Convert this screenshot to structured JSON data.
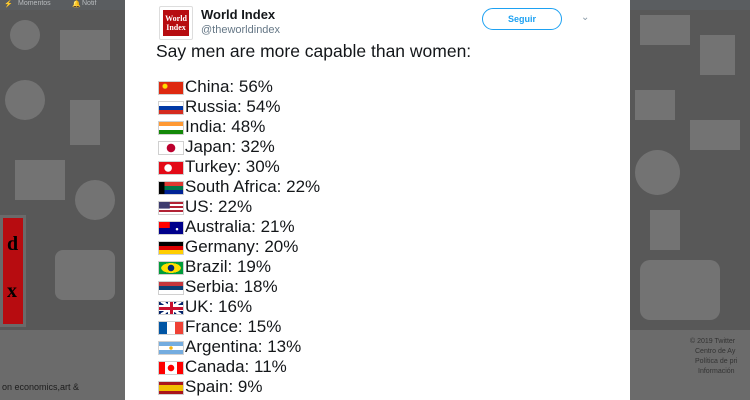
{
  "background": {
    "nav_items": [
      "Momentos",
      "Notif"
    ],
    "left_snippet": "on economics,art &",
    "logo_letters": [
      "d",
      "x"
    ],
    "footer_lines": [
      "© 2019 Twitter",
      "Centro de Ay",
      "Política de pri",
      "Información"
    ]
  },
  "tweet": {
    "author": {
      "name": "World Index",
      "handle": "@theworldindex",
      "avatar_text": "World Index"
    },
    "follow_label": "Seguir",
    "text": "Say men are more capable than women:",
    "rows": [
      {
        "label": "China: 56%",
        "flag": "china-flag-icon",
        "colors": [
          "#de2910",
          "#ffde00"
        ]
      },
      {
        "label": "Russia: 54%",
        "flag": "russia-flag-icon",
        "colors": [
          "#ffffff",
          "#0039a6",
          "#d52b1e"
        ]
      },
      {
        "label": "India: 48%",
        "flag": "india-flag-icon",
        "colors": [
          "#ff9933",
          "#ffffff",
          "#138808"
        ]
      },
      {
        "label": "Japan: 32%",
        "flag": "japan-flag-icon",
        "colors": [
          "#ffffff",
          "#bc002d"
        ]
      },
      {
        "label": "Turkey: 30%",
        "flag": "turkey-flag-icon",
        "colors": [
          "#e30a17",
          "#ffffff"
        ]
      },
      {
        "label": "South Africa: 22%",
        "flag": "south-africa-flag-icon",
        "colors": [
          "#007749",
          "#000000",
          "#ffb612",
          "#de3831",
          "#002395"
        ]
      },
      {
        "label": "US: 22%",
        "flag": "us-flag-icon",
        "colors": [
          "#b22234",
          "#ffffff",
          "#3c3b6e"
        ]
      },
      {
        "label": "Australia: 21%",
        "flag": "australia-flag-icon",
        "colors": [
          "#00008b",
          "#ffffff",
          "#ff0000"
        ]
      },
      {
        "label": "Germany: 20%",
        "flag": "germany-flag-icon",
        "colors": [
          "#000000",
          "#dd0000",
          "#ffce00"
        ]
      },
      {
        "label": "Brazil: 19%",
        "flag": "brazil-flag-icon",
        "colors": [
          "#009c3b",
          "#ffdf00",
          "#002776"
        ]
      },
      {
        "label": "Serbia: 18%",
        "flag": "serbia-flag-icon",
        "colors": [
          "#c6363c",
          "#0c4076",
          "#ffffff"
        ]
      },
      {
        "label": "UK: 16%",
        "flag": "uk-flag-icon",
        "colors": [
          "#012169",
          "#ffffff",
          "#c8102e"
        ]
      },
      {
        "label": "France: 15%",
        "flag": "france-flag-icon",
        "colors": [
          "#0055a4",
          "#ffffff",
          "#ef4135"
        ]
      },
      {
        "label": "Argentina: 13%",
        "flag": "argentina-flag-icon",
        "colors": [
          "#74acdf",
          "#ffffff",
          "#f6b40e"
        ]
      },
      {
        "label": "Canada: 11%",
        "flag": "canada-flag-icon",
        "colors": [
          "#ff0000",
          "#ffffff"
        ]
      },
      {
        "label": "Spain: 9%",
        "flag": "spain-flag-icon",
        "colors": [
          "#aa151b",
          "#f1bf00"
        ]
      }
    ]
  }
}
